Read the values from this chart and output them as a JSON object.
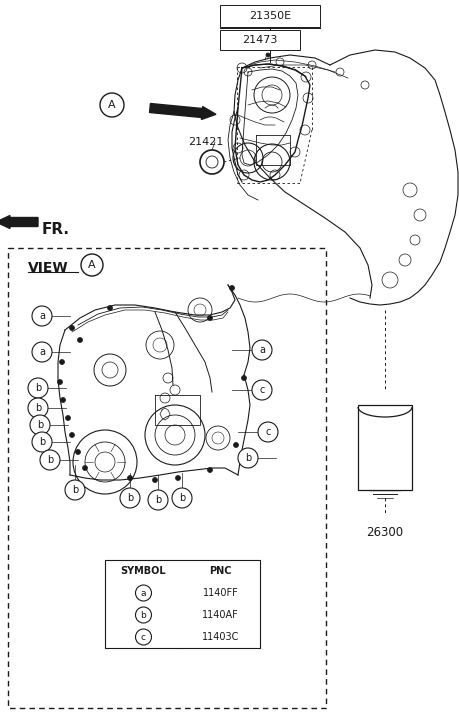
{
  "bg_color": "#ffffff",
  "line_color": "#1a1a1a",
  "fig_w": 4.6,
  "fig_h": 7.27,
  "dpi": 100,
  "parts": [
    {
      "label": "21350E"
    },
    {
      "label": "21473"
    },
    {
      "label": "21421"
    },
    {
      "label": "26300"
    }
  ],
  "symbols": [
    {
      "sym": "a",
      "pnc": "1140FF"
    },
    {
      "sym": "b",
      "pnc": "1140AF"
    },
    {
      "sym": "c",
      "pnc": "11403C"
    }
  ],
  "fr_label": "FR.",
  "view_label": "VIEW"
}
